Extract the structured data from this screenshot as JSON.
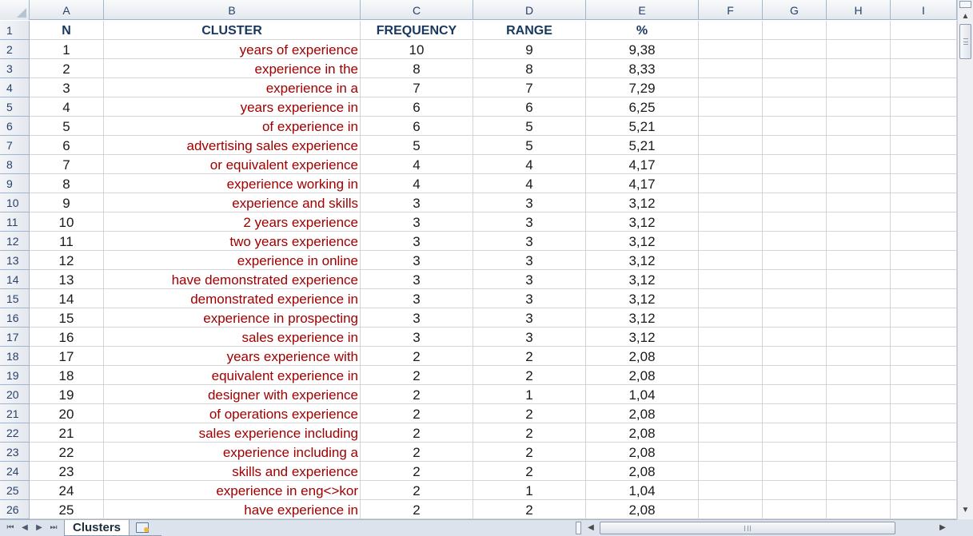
{
  "columns": [
    "A",
    "B",
    "C",
    "D",
    "E",
    "F",
    "G",
    "H",
    "I"
  ],
  "row_numbers": [
    "1",
    "2",
    "3",
    "4",
    "5",
    "6",
    "7",
    "8",
    "9",
    "10",
    "11",
    "12",
    "13",
    "14",
    "15",
    "16",
    "17",
    "18",
    "19",
    "20",
    "21",
    "22",
    "23",
    "24",
    "25",
    "26"
  ],
  "headers": {
    "n": "N",
    "cluster": "CLUSTER",
    "frequency": "FREQUENCY",
    "range": "RANGE",
    "percent": "%"
  },
  "rows": [
    {
      "n": "1",
      "cluster": "years of experience",
      "frequency": "10",
      "range": "9",
      "percent": "9,38"
    },
    {
      "n": "2",
      "cluster": "experience in the",
      "frequency": "8",
      "range": "8",
      "percent": "8,33"
    },
    {
      "n": "3",
      "cluster": "experience in a",
      "frequency": "7",
      "range": "7",
      "percent": "7,29"
    },
    {
      "n": "4",
      "cluster": "years experience in",
      "frequency": "6",
      "range": "6",
      "percent": "6,25"
    },
    {
      "n": "5",
      "cluster": "of experience in",
      "frequency": "6",
      "range": "5",
      "percent": "5,21"
    },
    {
      "n": "6",
      "cluster": "advertising sales experience",
      "frequency": "5",
      "range": "5",
      "percent": "5,21"
    },
    {
      "n": "7",
      "cluster": "or equivalent experience",
      "frequency": "4",
      "range": "4",
      "percent": "4,17"
    },
    {
      "n": "8",
      "cluster": "experience working in",
      "frequency": "4",
      "range": "4",
      "percent": "4,17"
    },
    {
      "n": "9",
      "cluster": "experience and skills",
      "frequency": "3",
      "range": "3",
      "percent": "3,12"
    },
    {
      "n": "10",
      "cluster": "2 years experience",
      "frequency": "3",
      "range": "3",
      "percent": "3,12"
    },
    {
      "n": "11",
      "cluster": "two years experience",
      "frequency": "3",
      "range": "3",
      "percent": "3,12"
    },
    {
      "n": "12",
      "cluster": "experience in online",
      "frequency": "3",
      "range": "3",
      "percent": "3,12"
    },
    {
      "n": "13",
      "cluster": "have demonstrated experience",
      "frequency": "3",
      "range": "3",
      "percent": "3,12"
    },
    {
      "n": "14",
      "cluster": "demonstrated experience in",
      "frequency": "3",
      "range": "3",
      "percent": "3,12"
    },
    {
      "n": "15",
      "cluster": "experience in prospecting",
      "frequency": "3",
      "range": "3",
      "percent": "3,12"
    },
    {
      "n": "16",
      "cluster": "sales experience in",
      "frequency": "3",
      "range": "3",
      "percent": "3,12"
    },
    {
      "n": "17",
      "cluster": "years experience with",
      "frequency": "2",
      "range": "2",
      "percent": "2,08"
    },
    {
      "n": "18",
      "cluster": "equivalent experience in",
      "frequency": "2",
      "range": "2",
      "percent": "2,08"
    },
    {
      "n": "19",
      "cluster": "designer with experience",
      "frequency": "2",
      "range": "1",
      "percent": "1,04"
    },
    {
      "n": "20",
      "cluster": "of operations experience",
      "frequency": "2",
      "range": "2",
      "percent": "2,08"
    },
    {
      "n": "21",
      "cluster": "sales experience including",
      "frequency": "2",
      "range": "2",
      "percent": "2,08"
    },
    {
      "n": "22",
      "cluster": "experience including a",
      "frequency": "2",
      "range": "2",
      "percent": "2,08"
    },
    {
      "n": "23",
      "cluster": "skills and experience",
      "frequency": "2",
      "range": "2",
      "percent": "2,08"
    },
    {
      "n": "24",
      "cluster": "experience in eng<>kor",
      "frequency": "2",
      "range": "1",
      "percent": "1,04"
    },
    {
      "n": "25",
      "cluster": "have experience in",
      "frequency": "2",
      "range": "2",
      "percent": "2,08"
    }
  ],
  "sheet_tab": {
    "label": "Clusters"
  },
  "icons": {
    "nav_first": "first-sheet-icon",
    "nav_prev": "prev-sheet-icon",
    "nav_next": "next-sheet-icon",
    "nav_last": "last-sheet-icon",
    "new_sheet": "insert-worksheet-icon"
  },
  "colors": {
    "cluster_text": "#a00000",
    "header_text": "#17375e",
    "grid_line": "#d4d4d4"
  }
}
